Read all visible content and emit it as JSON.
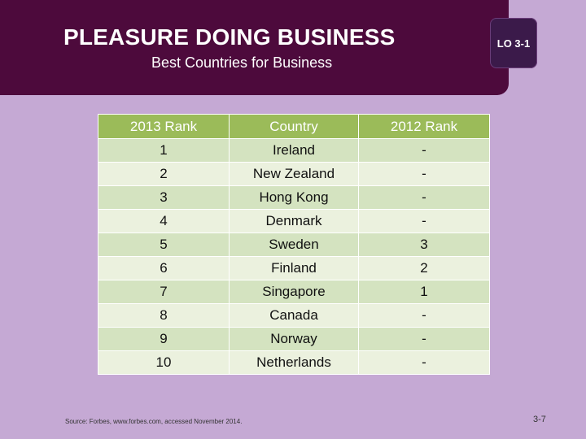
{
  "slide": {
    "title": "PLEASURE DOING BUSINESS",
    "subtitle": "Best Countries for Business",
    "lo_badge": "LO 3-1",
    "source": "Source: Forbes, www.forbes.com, accessed November 2014.",
    "page_number": "3-7"
  },
  "table": {
    "headers": [
      "2013 Rank",
      "Country",
      "2012 Rank"
    ],
    "rows": [
      [
        "1",
        "Ireland",
        "-"
      ],
      [
        "2",
        "New Zealand",
        "-"
      ],
      [
        "3",
        "Hong Kong",
        "-"
      ],
      [
        "4",
        "Denmark",
        "-"
      ],
      [
        "5",
        "Sweden",
        "3"
      ],
      [
        "6",
        "Finland",
        "2"
      ],
      [
        "7",
        "Singapore",
        "1"
      ],
      [
        "8",
        "Canada",
        "-"
      ],
      [
        "9",
        "Norway",
        "-"
      ],
      [
        "10",
        "Netherlands",
        "-"
      ]
    ]
  },
  "colors": {
    "header_band": "#4d0a3c",
    "background": "#c5a9d4",
    "table_header": "#9bbb59",
    "row_odd": "#d4e3c0",
    "row_even": "#ebf1de"
  }
}
